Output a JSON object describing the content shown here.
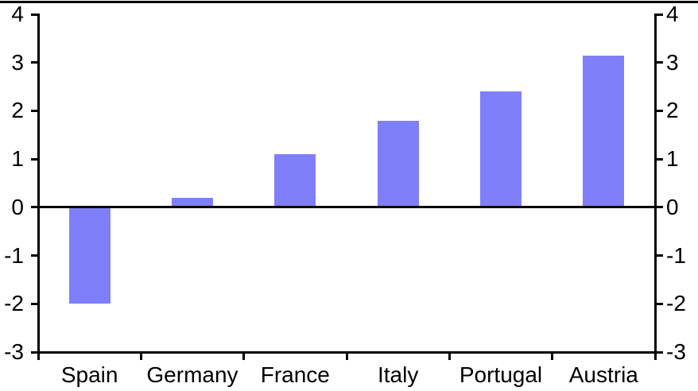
{
  "chart_data": {
    "type": "bar",
    "title": "",
    "xlabel": "",
    "ylabel": "",
    "categories": [
      "Spain",
      "Germany",
      "France",
      "Italy",
      "Portugal",
      "Austria"
    ],
    "values": [
      -2,
      0.2,
      1.1,
      1.8,
      2.4,
      3.15
    ],
    "ylim": [
      -3,
      4
    ],
    "ytick_step": 1,
    "ytick_labels": [
      "-3",
      "-2",
      "-1",
      "0",
      "1",
      "2",
      "3",
      "4"
    ],
    "dual_y_axis": true,
    "grid": false,
    "legend": false,
    "zero_line": true,
    "bar_color": "#7F7FFA",
    "axis_color": "#000000",
    "text_color": "#000000",
    "background_color": "#FFFFFF"
  }
}
